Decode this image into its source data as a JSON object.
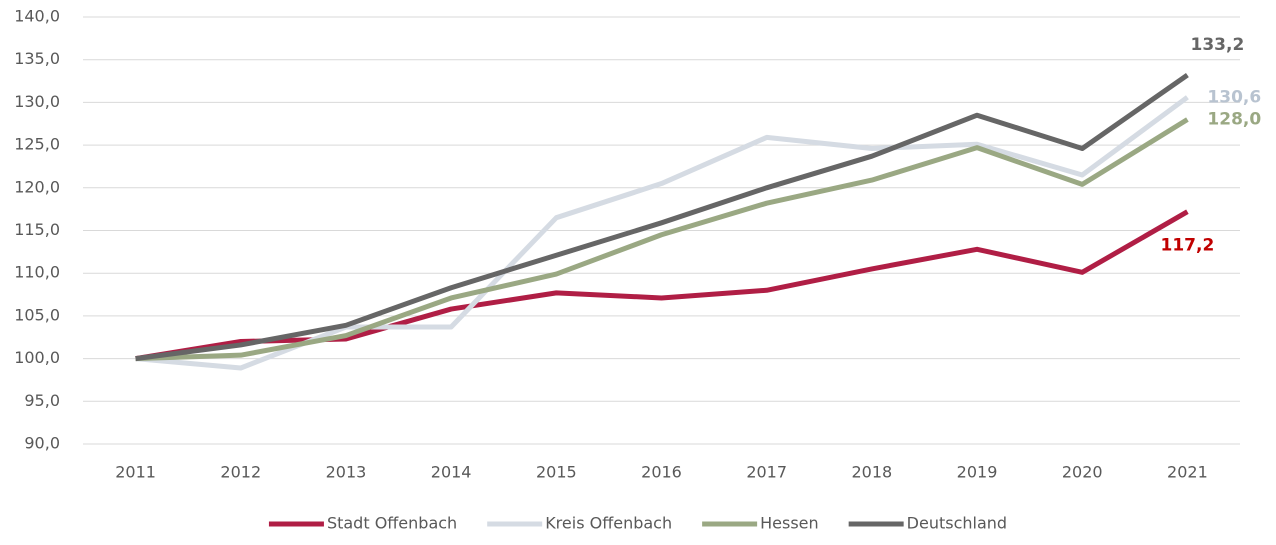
{
  "chart_data": {
    "type": "line",
    "categories": [
      "2011",
      "2012",
      "2013",
      "2014",
      "2015",
      "2016",
      "2017",
      "2018",
      "2019",
      "2020",
      "2021"
    ],
    "series": [
      {
        "name": "Stadt Offenbach",
        "color": "#b01e45",
        "values": [
          100,
          102.0,
          102.3,
          105.8,
          107.7,
          107.1,
          108.0,
          110.5,
          112.8,
          110.1,
          117.2
        ],
        "value_labels": [
          null,
          null,
          null,
          null,
          null,
          null,
          null,
          null,
          null,
          null,
          "117,2"
        ]
      },
      {
        "name": "Kreis Offenbach",
        "color": "#d5dbe3",
        "values": [
          100,
          98.9,
          103.7,
          103.7,
          116.5,
          120.5,
          125.9,
          124.6,
          125.1,
          121.5,
          130.6
        ],
        "value_labels": [
          null,
          null,
          null,
          null,
          null,
          null,
          null,
          null,
          null,
          null,
          "130,6"
        ]
      },
      {
        "name": "Hessen",
        "color": "#9aa883",
        "values": [
          100,
          100.4,
          102.7,
          107.1,
          109.9,
          114.5,
          118.2,
          120.9,
          124.7,
          120.4,
          128.0
        ],
        "value_labels": [
          null,
          null,
          null,
          null,
          null,
          null,
          null,
          null,
          null,
          null,
          "128,0"
        ]
      },
      {
        "name": "Deutschland",
        "color": "#666666",
        "values": [
          100,
          101.6,
          103.9,
          108.3,
          112.1,
          115.9,
          120.0,
          123.7,
          128.5,
          124.6,
          133.2
        ],
        "value_labels": [
          null,
          null,
          null,
          null,
          null,
          null,
          null,
          null,
          null,
          null,
          "133,2"
        ]
      }
    ],
    "ylim": [
      90,
      140
    ],
    "yticks": [
      {
        "value": 90,
        "label": "90,0"
      },
      {
        "value": 95,
        "label": "95,0"
      },
      {
        "value": 100,
        "label": "100,0"
      },
      {
        "value": 105,
        "label": "105,0"
      },
      {
        "value": 110,
        "label": "110,0"
      },
      {
        "value": 115,
        "label": "115,0"
      },
      {
        "value": 120,
        "label": "120,0"
      },
      {
        "value": 125,
        "label": "125,0"
      },
      {
        "value": 130,
        "label": "130,0"
      },
      {
        "value": 135,
        "label": "135,0"
      },
      {
        "value": 140,
        "label": "140,0"
      }
    ],
    "grid": true,
    "legend": "bottom"
  }
}
